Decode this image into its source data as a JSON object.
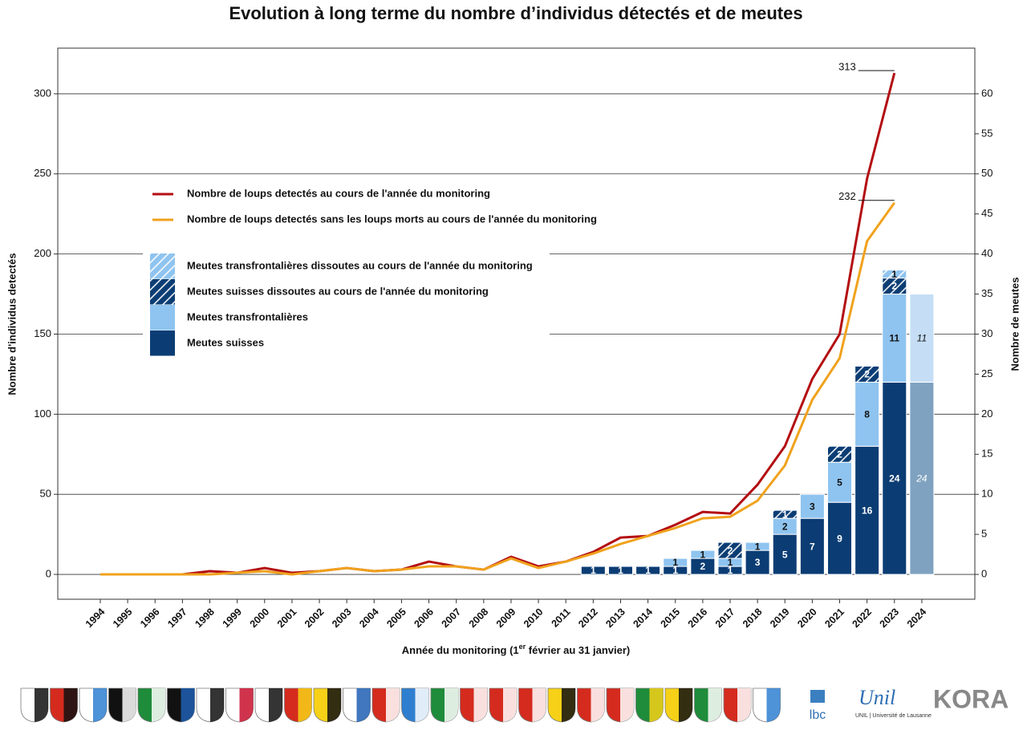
{
  "chart_data": {
    "type": "bar",
    "title": "Evolution à long terme du nombre d’individus détectés et de meutes",
    "xlabel_parts": [
      "Année du monitoring (1",
      "er",
      " février au 31 janvier)"
    ],
    "ylabel": "Nombre d'individus detectés",
    "y2label": "Nombre de meutes",
    "categories": [
      "1994",
      "1995",
      "1996",
      "1997",
      "1998",
      "1999",
      "2000",
      "2001",
      "2002",
      "2003",
      "2004",
      "2005",
      "2006",
      "2007",
      "2008",
      "2009",
      "2010",
      "2011",
      "2012",
      "2013",
      "2014",
      "2015",
      "2016",
      "2017",
      "2018",
      "2019",
      "2020",
      "2021",
      "2022",
      "2023",
      "2024"
    ],
    "ylim": [
      -15.5,
      328.5
    ],
    "yticks": [
      0,
      50,
      100,
      150,
      200,
      250,
      300
    ],
    "y2lim": [
      -3.1,
      65.7
    ],
    "y2ticks": [
      0,
      5,
      10,
      15,
      20,
      25,
      30,
      35,
      40,
      45,
      50,
      55,
      60
    ],
    "grid": true,
    "faded_categories": [
      "2024"
    ],
    "series": [
      {
        "name": "Nombre de loups detectés au cours de l'année du monitoring",
        "type": "line",
        "color": "#b30e12",
        "end_label": true,
        "values": [
          0,
          0,
          0,
          0,
          2,
          1,
          4,
          1,
          2,
          4,
          2,
          3,
          8,
          5,
          3,
          11,
          5,
          8,
          14,
          23,
          24,
          31,
          39,
          38,
          56,
          80,
          122,
          150,
          247,
          313,
          null
        ]
      },
      {
        "name": "Nombre de loups detectés sans les loups morts au cours de l'année du monitoring",
        "type": "line",
        "color": "#f0a21c",
        "end_label": true,
        "values": [
          0,
          0,
          0,
          0,
          0,
          1,
          2,
          0,
          2,
          4,
          2,
          3,
          5,
          5,
          3,
          10,
          4,
          8,
          13,
          19,
          24,
          29,
          35,
          36,
          46,
          68,
          109,
          135,
          208,
          232,
          null
        ]
      },
      {
        "name": "Meutes suisses",
        "type": "bar",
        "axis": "y2",
        "color": "#0b3d74",
        "faded_color": "#7fa2c0",
        "label_color": "#ffffff",
        "values": [
          null,
          null,
          null,
          null,
          null,
          null,
          null,
          null,
          null,
          null,
          null,
          null,
          null,
          null,
          null,
          null,
          null,
          null,
          1,
          1,
          1,
          1,
          2,
          1,
          3,
          5,
          7,
          9,
          16,
          24,
          24
        ]
      },
      {
        "name": "Meutes transfrontalières",
        "type": "bar",
        "axis": "y2",
        "color": "#8fc4f0",
        "faded_color": "#c5def5",
        "label_color": "#111111",
        "values": [
          null,
          null,
          null,
          null,
          null,
          null,
          null,
          null,
          null,
          null,
          null,
          null,
          null,
          null,
          null,
          null,
          null,
          null,
          null,
          null,
          null,
          1,
          1,
          1,
          1,
          2,
          3,
          5,
          8,
          11,
          11
        ]
      },
      {
        "name": "Meutes suisses dissoutes au cours de l'année du monitoring",
        "type": "bar",
        "axis": "y2",
        "color": "#0b3d74",
        "hatch": true,
        "label_color": "#ffffff",
        "values": [
          null,
          null,
          null,
          null,
          null,
          null,
          null,
          null,
          null,
          null,
          null,
          null,
          null,
          null,
          null,
          null,
          null,
          null,
          null,
          null,
          null,
          null,
          null,
          2,
          null,
          1,
          null,
          2,
          2,
          2,
          null
        ]
      },
      {
        "name": "Meutes transfrontalières dissoutes au cours de l'année du monitoring",
        "type": "bar",
        "axis": "y2",
        "color": "#8fc4f0",
        "hatch": true,
        "label_color": "#111111",
        "values": [
          null,
          null,
          null,
          null,
          null,
          null,
          null,
          null,
          null,
          null,
          null,
          null,
          null,
          null,
          null,
          null,
          null,
          null,
          null,
          null,
          null,
          null,
          null,
          null,
          null,
          null,
          null,
          null,
          null,
          1,
          null
        ]
      }
    ]
  },
  "logos": [
    "lbc",
    "Unil",
    "UNIL | Université de Lausanne",
    "KORA"
  ]
}
